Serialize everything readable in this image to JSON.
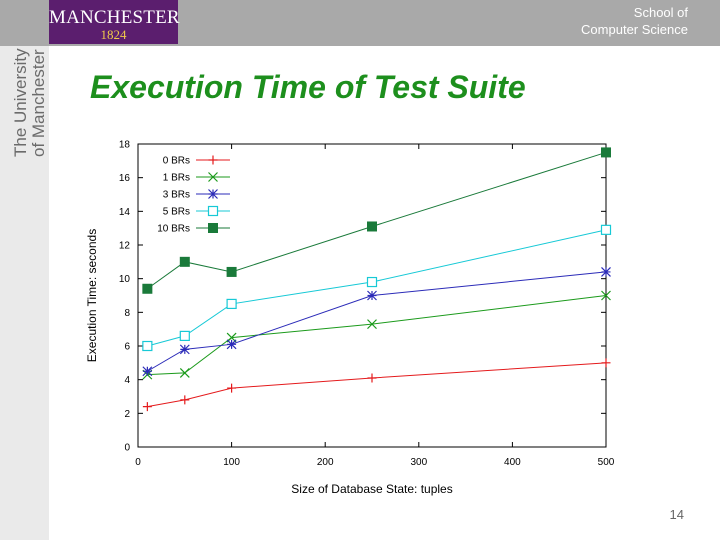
{
  "header": {
    "logo_name": "MANCHESTER",
    "logo_year": "1824",
    "school_line1": "School of",
    "school_line2": "Computer Science",
    "brand_line1": "The University",
    "brand_line2": "of Manchester"
  },
  "slide": {
    "title": "Execution Time of Test Suite",
    "page_number": "14"
  },
  "chart_data": {
    "type": "line",
    "title": "",
    "xlabel": "Size of Database State: tuples",
    "ylabel": "Execution Time: seconds",
    "xlim": [
      0,
      500
    ],
    "ylim": [
      0,
      18
    ],
    "x_ticks": [
      "0",
      "100",
      "200",
      "300",
      "400",
      "500"
    ],
    "y_ticks": [
      "0",
      "2",
      "4",
      "6",
      "8",
      "10",
      "12",
      "14",
      "16",
      "18"
    ],
    "legend_position": "top-left",
    "grid": false,
    "series": [
      {
        "name": "0 BRs",
        "color": "#e41a1c",
        "marker": "plus",
        "x": [
          10,
          50,
          100,
          250,
          500
        ],
        "y": [
          2.4,
          2.8,
          3.5,
          4.1,
          5.0
        ]
      },
      {
        "name": "1 BRs",
        "color": "#1b9a1b",
        "marker": "cross",
        "x": [
          10,
          50,
          100,
          250,
          500
        ],
        "y": [
          4.3,
          4.4,
          6.5,
          7.3,
          9.0
        ]
      },
      {
        "name": "3 BRs",
        "color": "#2b2bb8",
        "marker": "star",
        "x": [
          10,
          50,
          100,
          250,
          500
        ],
        "y": [
          4.5,
          5.8,
          6.1,
          9.0,
          10.4
        ]
      },
      {
        "name": "5 BRs",
        "color": "#17c9d6",
        "marker": "square-open",
        "x": [
          10,
          50,
          100,
          250,
          500
        ],
        "y": [
          6.0,
          6.6,
          8.5,
          9.8,
          12.9
        ]
      },
      {
        "name": "10 BRs",
        "color": "#1a7a3a",
        "marker": "square-filled",
        "x": [
          10,
          50,
          100,
          250,
          500
        ],
        "y": [
          9.4,
          11.0,
          10.4,
          13.1,
          17.5
        ]
      }
    ]
  }
}
